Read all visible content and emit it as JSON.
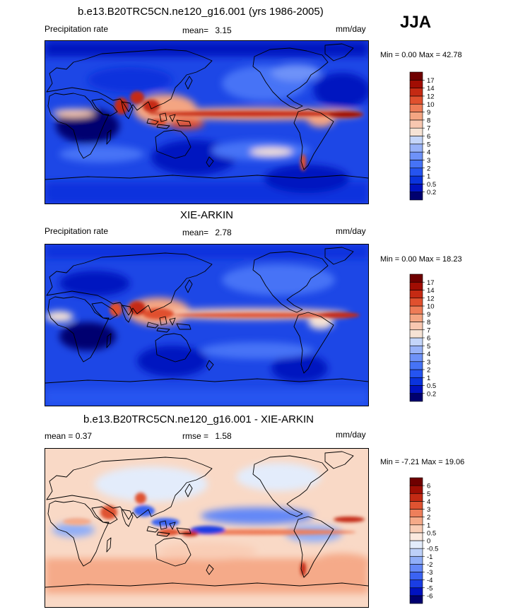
{
  "season": "JJA",
  "panels": [
    {
      "title": "b.e13.B20TRC5CN.ne120_g16.001 (yrs 1986-2005)",
      "left_label": "Precipitation rate",
      "stat_label": "mean=",
      "stat_value": "3.15",
      "units": "mm/day",
      "minmax": "Min =   0.00 Max =  42.78",
      "colorbar": {
        "colors": [
          "#00006f",
          "#0012c0",
          "#0a33dd",
          "#2554f0",
          "#4673f6",
          "#6e92f8",
          "#98b2f8",
          "#c4d5f9",
          "#f6e3d5",
          "#f8c7b0",
          "#f4a582",
          "#ee7c57",
          "#e0502e",
          "#c52a13",
          "#a10d03",
          "#6f0000"
        ],
        "labels": [
          "0.2",
          "0.5",
          "1",
          "2",
          "3",
          "4",
          "5",
          "6",
          "7",
          "8",
          "9",
          "10",
          "12",
          "14",
          "17"
        ]
      }
    },
    {
      "title": "XIE-ARKIN",
      "left_label": "Precipitation rate",
      "stat_label": "mean=",
      "stat_value": "2.78",
      "units": "mm/day",
      "minmax": "Min =   0.00 Max =  18.23",
      "colorbar": {
        "colors": [
          "#00006f",
          "#0012c0",
          "#0a33dd",
          "#2554f0",
          "#4673f6",
          "#6e92f8",
          "#98b2f8",
          "#c4d5f9",
          "#f6e3d5",
          "#f8c7b0",
          "#f4a582",
          "#ee7c57",
          "#e0502e",
          "#c52a13",
          "#a10d03",
          "#6f0000"
        ],
        "labels": [
          "0.2",
          "0.5",
          "1",
          "2",
          "3",
          "4",
          "5",
          "6",
          "7",
          "8",
          "9",
          "10",
          "12",
          "14",
          "17"
        ]
      }
    },
    {
      "title": "b.e13.B20TRC5CN.ne120_g16.001 - XIE-ARKIN",
      "left_label": "mean =   0.37",
      "stat_label": "rmse =",
      "stat_value": "1.58",
      "units": "mm/day",
      "minmax": "Min =  -7.21 Max =  19.06",
      "colorbar": {
        "colors": [
          "#00006f",
          "#0012c0",
          "#1a3de4",
          "#3b63f2",
          "#6488f7",
          "#90aef8",
          "#bdd0f9",
          "#e3ecfb",
          "#fbe9df",
          "#f9cdb6",
          "#f5aa89",
          "#ee7f5b",
          "#df5331",
          "#c42a14",
          "#9f0e04",
          "#6f0000"
        ],
        "labels": [
          "-6",
          "-5",
          "-4",
          "-3",
          "-2",
          "-1",
          "-0.5",
          "0",
          "0.5",
          "1",
          "2",
          "3",
          "4",
          "5",
          "6"
        ]
      }
    }
  ],
  "chart_data": [
    {
      "type": "heatmap",
      "title": "b.e13.B20TRC5CN.ne120_g16.001 (yrs 1986-2005)",
      "variable": "Precipitation rate",
      "units": "mm/day",
      "season": "JJA",
      "mean": 3.15,
      "min": 0.0,
      "max": 42.78,
      "contour_levels": [
        0.2,
        0.5,
        1,
        2,
        3,
        4,
        5,
        6,
        7,
        8,
        9,
        10,
        12,
        14,
        17
      ],
      "colorscale": [
        "#00006f",
        "#0012c0",
        "#0a33dd",
        "#2554f0",
        "#4673f6",
        "#6e92f8",
        "#98b2f8",
        "#c4d5f9",
        "#f6e3d5",
        "#f8c7b0",
        "#f4a582",
        "#ee7c57",
        "#e0502e",
        "#c52a13",
        "#a10d03",
        "#6f0000"
      ]
    },
    {
      "type": "heatmap",
      "title": "XIE-ARKIN",
      "variable": "Precipitation rate",
      "units": "mm/day",
      "season": "JJA",
      "mean": 2.78,
      "min": 0.0,
      "max": 18.23,
      "contour_levels": [
        0.2,
        0.5,
        1,
        2,
        3,
        4,
        5,
        6,
        7,
        8,
        9,
        10,
        12,
        14,
        17
      ],
      "colorscale": [
        "#00006f",
        "#0012c0",
        "#0a33dd",
        "#2554f0",
        "#4673f6",
        "#6e92f8",
        "#98b2f8",
        "#c4d5f9",
        "#f6e3d5",
        "#f8c7b0",
        "#f4a582",
        "#ee7c57",
        "#e0502e",
        "#c52a13",
        "#a10d03",
        "#6f0000"
      ]
    },
    {
      "type": "heatmap",
      "title": "b.e13.B20TRC5CN.ne120_g16.001 - XIE-ARKIN",
      "units": "mm/day",
      "season": "JJA",
      "mean": 0.37,
      "rmse": 1.58,
      "min": -7.21,
      "max": 19.06,
      "contour_levels": [
        -6,
        -5,
        -4,
        -3,
        -2,
        -1,
        -0.5,
        0,
        0.5,
        1,
        2,
        3,
        4,
        5,
        6
      ],
      "colorscale": [
        "#00006f",
        "#0012c0",
        "#1a3de4",
        "#3b63f2",
        "#6488f7",
        "#90aef8",
        "#bdd0f9",
        "#e3ecfb",
        "#fbe9df",
        "#f9cdb6",
        "#f5aa89",
        "#ee7f5b",
        "#df5331",
        "#c42a14",
        "#9f0e04",
        "#6f0000"
      ]
    }
  ]
}
